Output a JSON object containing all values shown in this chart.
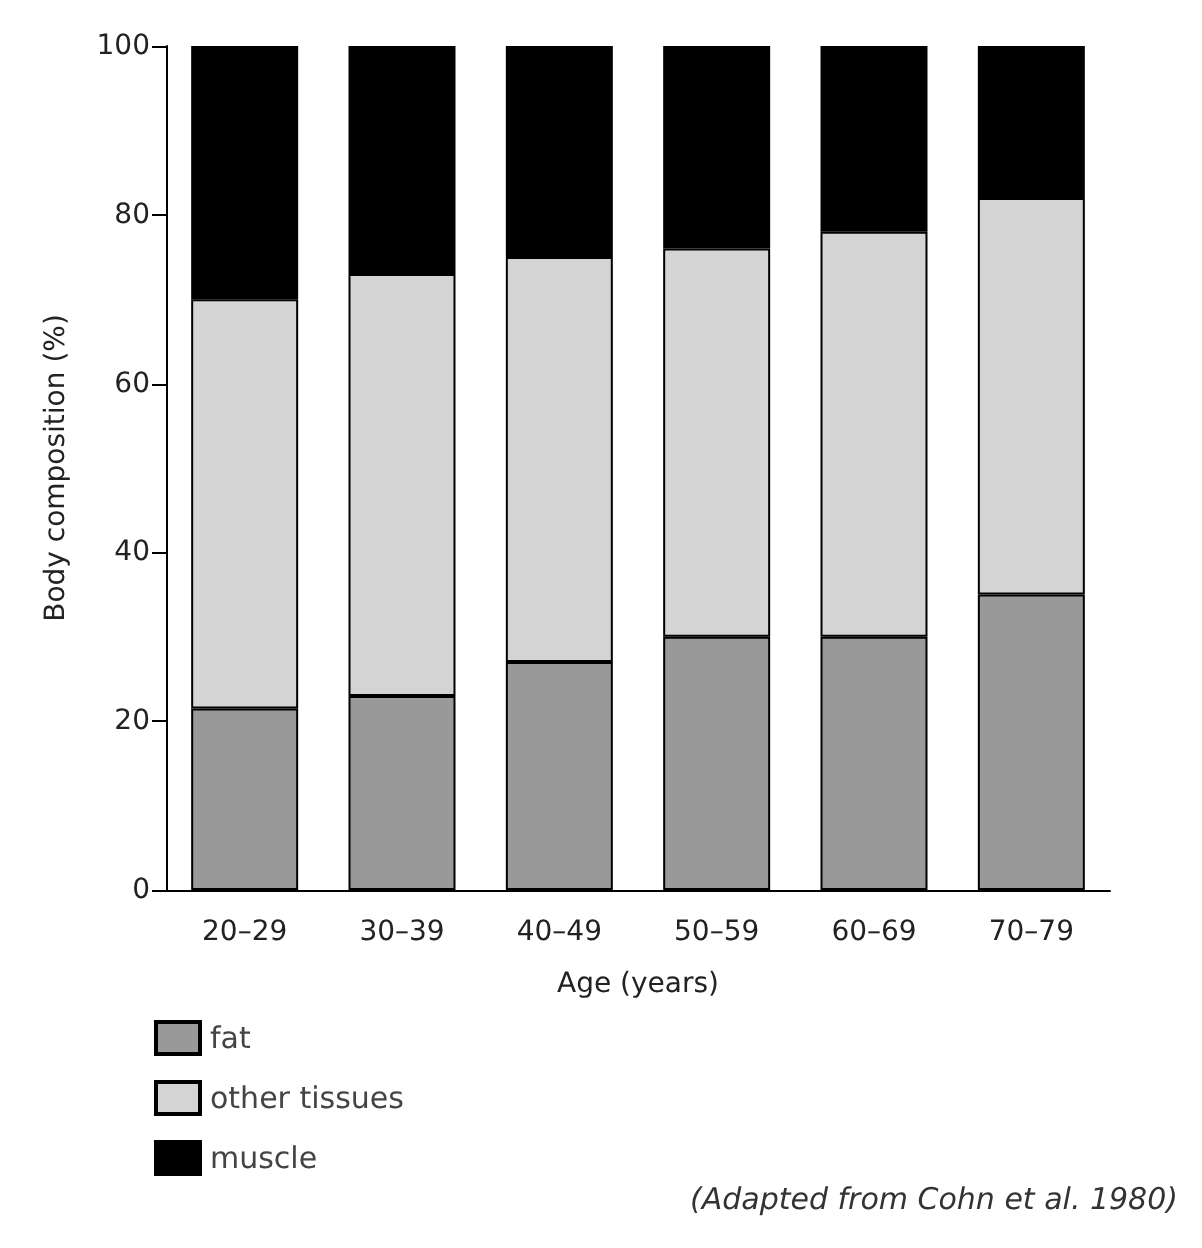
{
  "chart_data": {
    "type": "bar",
    "stacked": true,
    "xlabel": "Age (years)",
    "ylabel": "Body composition (%)",
    "categories": [
      "20–29",
      "30–39",
      "40–49",
      "50–59",
      "60–69",
      "70–79"
    ],
    "series": [
      {
        "name": "fat",
        "color": "#999999",
        "values": [
          21.5,
          23,
          27,
          30,
          30,
          35
        ]
      },
      {
        "name": "other tissues",
        "color": "#d4d4d4",
        "values": [
          48.5,
          50,
          48,
          46,
          48,
          47
        ]
      },
      {
        "name": "muscle",
        "color": "#000000",
        "values": [
          30,
          27,
          25,
          24,
          22,
          18
        ]
      }
    ],
    "ylim": [
      0,
      100
    ],
    "yticks": [
      0,
      20,
      40,
      60,
      80,
      100
    ],
    "grid": false,
    "legend": "bottom left",
    "annotations": [
      "(Adapted from Cohn et al. 1980)"
    ]
  }
}
